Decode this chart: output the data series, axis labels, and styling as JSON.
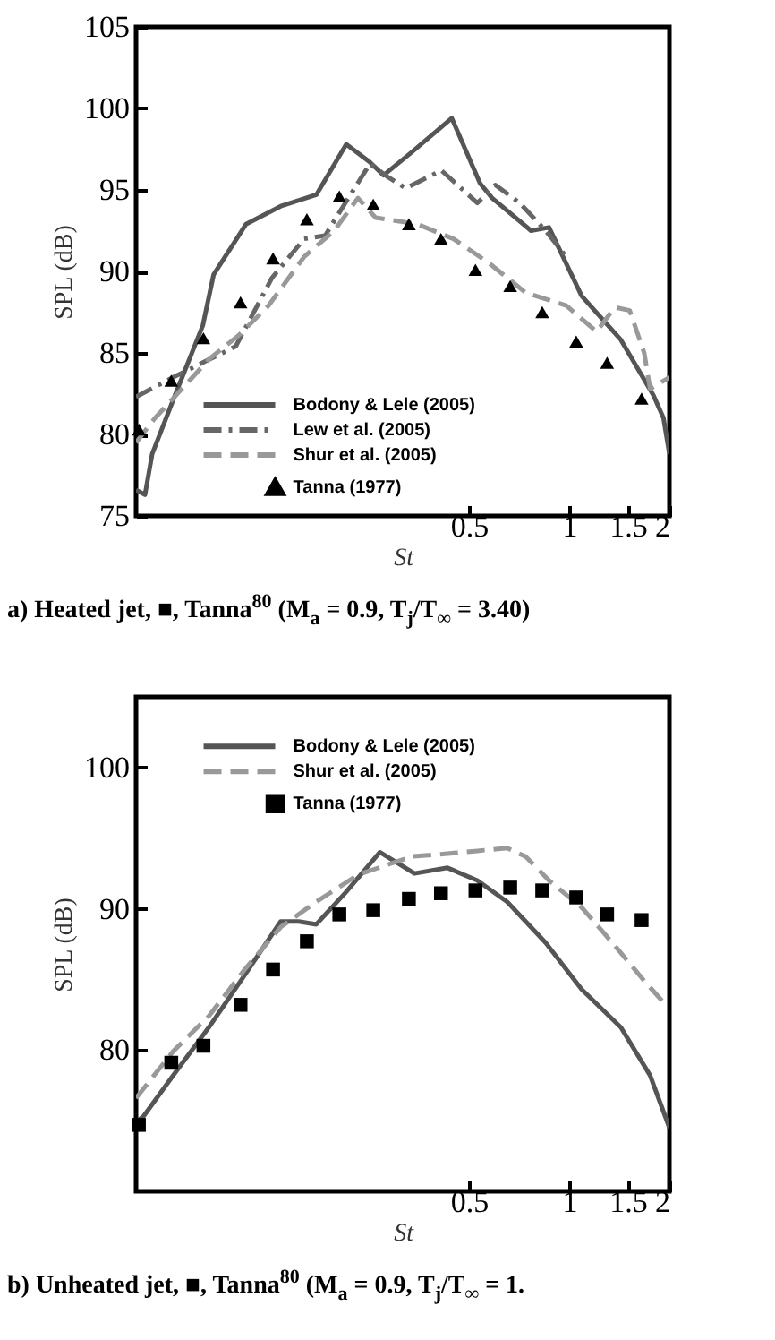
{
  "chart_data": [
    {
      "type": "line",
      "title": "a) Heated jet, ■, Tanna$^{80}$ (M$_{a}$ = 0.9, T$_{j}$/T$_{∞}$ = 3.40)",
      "xlabel": "St",
      "ylabel": "SPL (dB)",
      "log": "x",
      "xlim": [
        0.05,
        2
      ],
      "xticks": [
        0.5,
        1,
        1.5,
        2
      ],
      "ylim": [
        75,
        105
      ],
      "yticks": [
        75,
        80,
        85,
        90,
        95,
        100,
        105
      ],
      "legend": "bottom left",
      "series": [
        {
          "name": "Bodony & Lele (2005)",
          "type": "line",
          "line_style": "solid",
          "color": "#555555",
          "x": [
            0.05,
            0.0532,
            0.0559,
            0.0646,
            0.0794,
            0.0855,
            0.107,
            0.136,
            0.174,
            0.214,
            0.252,
            0.277,
            0.336,
            0.444,
            0.54,
            0.587,
            0.768,
            0.87,
            1.09,
            1.43,
            1.79,
            1.92,
            2.0
          ],
          "values": [
            76.6,
            76.3,
            78.8,
            82.1,
            86.7,
            89.8,
            92.9,
            94.0,
            94.7,
            97.8,
            96.7,
            95.9,
            97.3,
            99.4,
            95.4,
            94.5,
            92.5,
            92.7,
            88.5,
            85.8,
            82.4,
            81.0,
            78.8
          ]
        },
        {
          "name": "Lew et al. (2005)",
          "type": "line",
          "line_style": "dashdot",
          "color": "#666666",
          "x": [
            0.05,
            0.0646,
            0.0811,
            0.0996,
            0.128,
            0.16,
            0.185,
            0.201,
            0.252,
            0.285,
            0.323,
            0.413,
            0.53,
            0.6,
            0.71,
            0.85,
            0.98
          ],
          "values": [
            82.3,
            83.5,
            84.5,
            85.4,
            89.6,
            92.0,
            92.2,
            93.4,
            96.6,
            95.8,
            95.1,
            96.2,
            94.2,
            95.3,
            94.2,
            92.5,
            90.9
          ]
        },
        {
          "name": "Shur et al. (2005)",
          "type": "line",
          "line_style": "dashed",
          "color": "#999999",
          "x": [
            0.05,
            0.057,
            0.0673,
            0.0827,
            0.102,
            0.125,
            0.16,
            0.197,
            0.232,
            0.262,
            0.35,
            0.449,
            0.575,
            0.74,
            0.98,
            1.21,
            1.37,
            1.52,
            1.68,
            1.75,
            2.0
          ],
          "values": [
            79.5,
            81.0,
            82.6,
            84.6,
            86.1,
            87.9,
            90.9,
            92.5,
            94.5,
            93.3,
            92.9,
            92.0,
            90.5,
            88.7,
            87.9,
            86.3,
            87.8,
            87.6,
            85.0,
            82.8,
            83.5
          ]
        },
        {
          "name": "Tanna (1977)",
          "type": "scatter",
          "marker": "triangle",
          "color": "#000000",
          "x": [
            0.051,
            0.0638,
            0.0797,
            0.103,
            0.129,
            0.163,
            0.204,
            0.258,
            0.33,
            0.412,
            0.523,
            0.665,
            0.83,
            1.05,
            1.3,
            1.65
          ],
          "values": [
            80.3,
            83.3,
            85.9,
            88.1,
            90.8,
            93.2,
            94.6,
            94.1,
            92.9,
            92.0,
            90.1,
            89.1,
            87.5,
            85.7,
            84.4,
            82.2
          ]
        }
      ]
    },
    {
      "type": "line",
      "title": "b) Unheated jet, ■, Tanna$^{80}$ (M$_{a}$ = 0.9, T$_{j}$/T$_{∞}$ = 1.",
      "xlabel": "St",
      "ylabel": "SPL (dB)",
      "log": "x",
      "xlim": [
        0.05,
        2
      ],
      "xticks": [
        0.5,
        1,
        1.5,
        2
      ],
      "ylim": [
        70,
        105
      ],
      "yticks": [
        80,
        90,
        100
      ],
      "legend": "top left",
      "series": [
        {
          "name": "Bodony & Lele (2005)",
          "type": "line",
          "line_style": "solid",
          "color": "#555555",
          "x": [
            0.05,
            0.0526,
            0.0646,
            0.0827,
            0.106,
            0.136,
            0.154,
            0.174,
            0.214,
            0.27,
            0.343,
            0.431,
            0.53,
            0.651,
            0.85,
            1.09,
            1.43,
            1.75,
            2.0
          ],
          "values": [
            74.9,
            75.3,
            78.2,
            81.6,
            85.3,
            89.1,
            89.1,
            88.9,
            91.2,
            94.0,
            92.5,
            92.9,
            92.0,
            90.5,
            87.6,
            84.3,
            81.6,
            78.2,
            74.5
          ]
        },
        {
          "name": "Shur et al. (2005)",
          "type": "line",
          "line_style": "dashed",
          "color": "#999999",
          "x": [
            0.05,
            0.0646,
            0.0827,
            0.106,
            0.136,
            0.174,
            0.232,
            0.336,
            0.431,
            0.53,
            0.651,
            0.74,
            0.87,
            1.09,
            1.37,
            1.68,
            1.9
          ],
          "values": [
            76.6,
            79.9,
            82.4,
            85.7,
            88.7,
            90.5,
            92.4,
            93.7,
            93.9,
            94.1,
            94.3,
            93.7,
            92.0,
            90.1,
            87.4,
            84.9,
            83.5
          ]
        },
        {
          "name": "Tanna (1977)",
          "type": "scatter",
          "marker": "square",
          "color": "#000000",
          "x": [
            0.051,
            0.0638,
            0.0797,
            0.103,
            0.129,
            0.163,
            0.204,
            0.258,
            0.33,
            0.412,
            0.523,
            0.665,
            0.83,
            1.05,
            1.3,
            1.65
          ],
          "values": [
            74.7,
            79.1,
            80.3,
            83.2,
            85.7,
            87.7,
            89.6,
            89.9,
            90.7,
            91.1,
            91.3,
            91.5,
            91.3,
            90.8,
            89.6,
            89.2
          ]
        }
      ]
    }
  ]
}
